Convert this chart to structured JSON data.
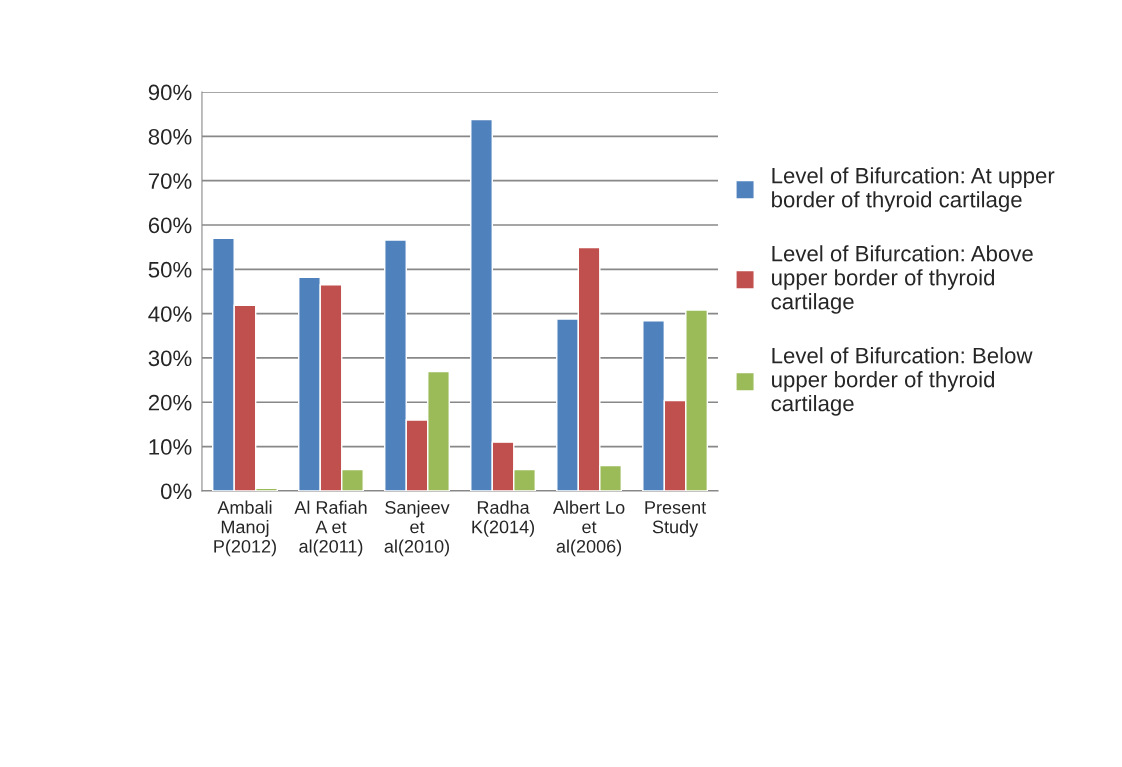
{
  "chart_data": {
    "type": "bar",
    "categories": [
      "Ambali\nManoj\nP(2012)",
      "Al Rafiah\nA et\nal(2011)",
      "Sanjeev\net\nal(2010)",
      "Radha\nK(2014)",
      "Albert Lo\net\nal(2006)",
      "Present\nStudy"
    ],
    "series": [
      {
        "name": "Level of Bifurcation: At upper\nborder of thyroid cartilage",
        "color": "#4f81bd",
        "values": [
          57,
          48.2,
          56.6,
          83.8,
          38.8,
          38.4
        ]
      },
      {
        "name": "Level of Bifurcation: Above\nupper border of thyroid\ncartilage",
        "color": "#c0504d",
        "values": [
          41.9,
          46.5,
          16,
          11,
          54.9,
          20.4
        ]
      },
      {
        "name": "Level of Bifurcation: Below\nupper border of thyroid\ncartilage",
        "color": "#9bbb59",
        "values": [
          0.6,
          4.8,
          26.9,
          4.8,
          5.7,
          40.8
        ]
      }
    ],
    "ylim": [
      0,
      90
    ],
    "yticks": [
      {
        "value": 0,
        "label": "0%"
      },
      {
        "value": 10,
        "label": "10%"
      },
      {
        "value": 20,
        "label": "20%"
      },
      {
        "value": 30,
        "label": "30%"
      },
      {
        "value": 40,
        "label": "40%"
      },
      {
        "value": 50,
        "label": "50%"
      },
      {
        "value": 60,
        "label": "60%"
      },
      {
        "value": 70,
        "label": "70%"
      },
      {
        "value": 80,
        "label": "80%"
      },
      {
        "value": 90,
        "label": "90%"
      }
    ],
    "grid": "y",
    "legend": "right"
  }
}
